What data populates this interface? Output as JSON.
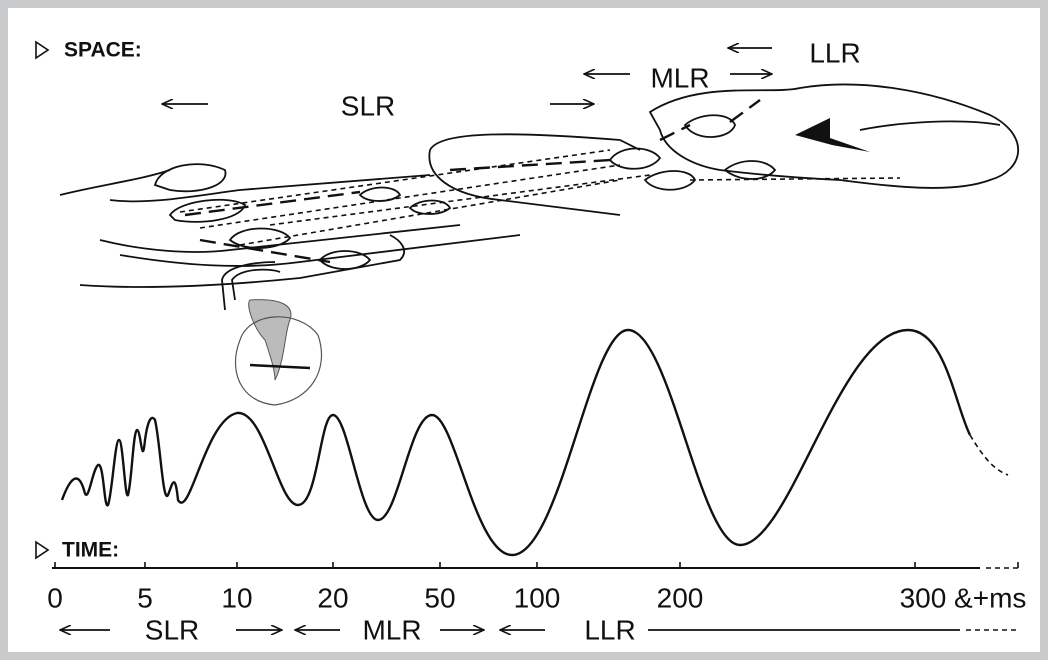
{
  "space": {
    "label": "SPACE:",
    "regions": [
      "SLR",
      "MLR",
      "LLR"
    ]
  },
  "time": {
    "label": "TIME:",
    "ticks": [
      "0",
      "5",
      "10",
      "20",
      "50",
      "100",
      "200",
      "300 &+ms"
    ],
    "regions": [
      "SLR",
      "MLR",
      "LLR"
    ]
  }
}
